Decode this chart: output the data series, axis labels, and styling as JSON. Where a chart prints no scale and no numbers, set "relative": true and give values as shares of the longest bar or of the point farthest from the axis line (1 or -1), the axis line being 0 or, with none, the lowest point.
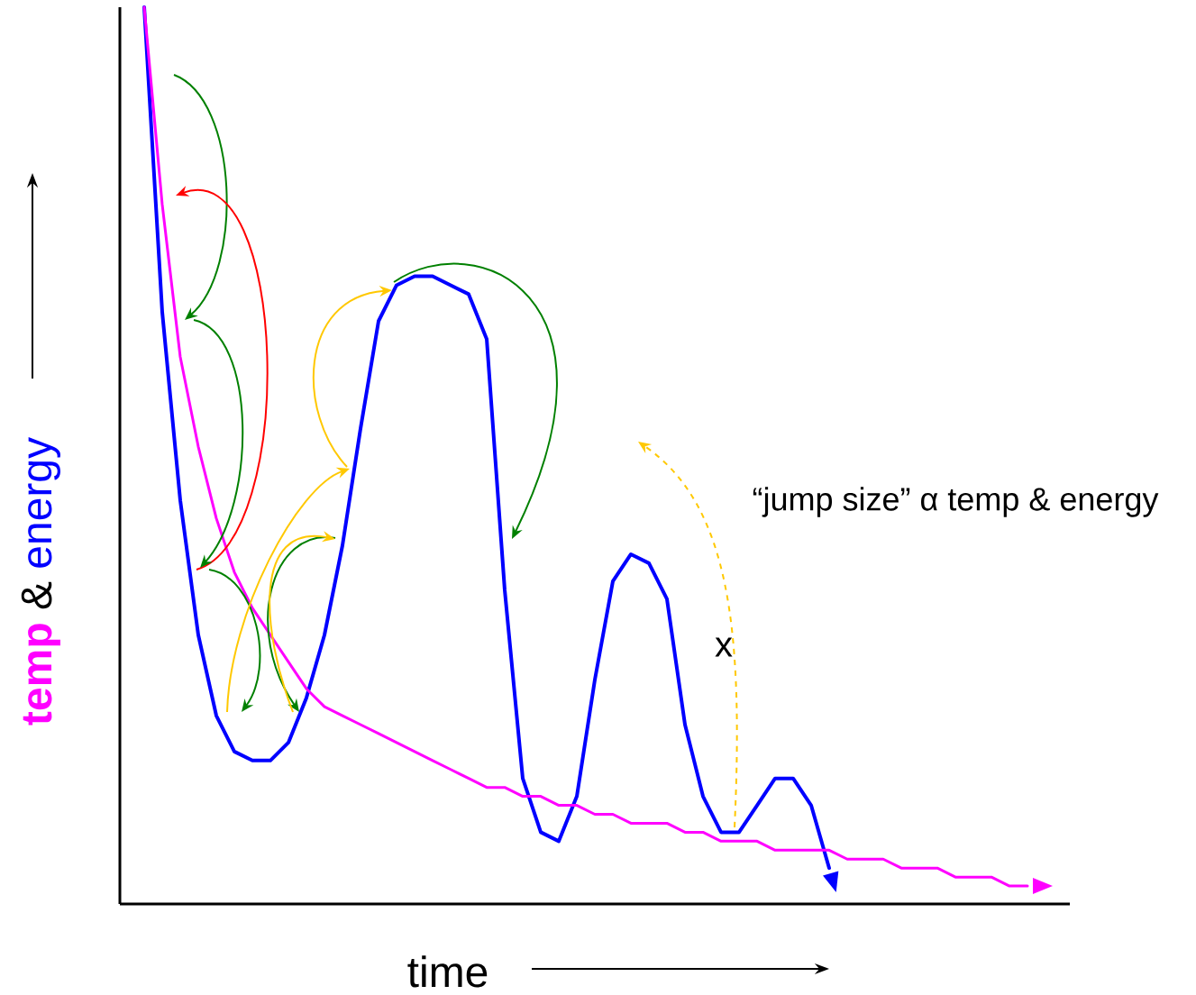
{
  "chart_data": {
    "type": "line",
    "relative": true,
    "xlabel": "time",
    "ylabel": "&",
    "marker": "none",
    "line_style": "solid",
    "categories": [
      null,
      null,
      null,
      null,
      null,
      null,
      null,
      null,
      null,
      null,
      null,
      null,
      null,
      null,
      null,
      null,
      null,
      null,
      null,
      null,
      null,
      null,
      null,
      null,
      null,
      null,
      null,
      null,
      null,
      null,
      null,
      null,
      null,
      null,
      null,
      null,
      null,
      null,
      null,
      null,
      null,
      null,
      null,
      null,
      null,
      null,
      null,
      null,
      null,
      null
    ],
    "series": [
      {
        "name": "temp",
        "color": "#ff00ff",
        "values": [
          1.0,
          0.78,
          0.61,
          0.51,
          0.43,
          0.37,
          0.33,
          0.3,
          0.27,
          0.24,
          0.22,
          0.21,
          0.2,
          0.19,
          0.18,
          0.17,
          0.16,
          0.15,
          0.14,
          0.13,
          0.13,
          0.12,
          0.12,
          0.11,
          0.11,
          0.1,
          0.1,
          0.09,
          0.09,
          0.09,
          0.08,
          0.08,
          0.07,
          0.07,
          0.07,
          0.06,
          0.06,
          0.06,
          0.06,
          0.05,
          0.05,
          0.05,
          0.04,
          0.04,
          0.04,
          0.03,
          0.03,
          0.03,
          0.02,
          0.02
        ]
      },
      {
        "name": "energy",
        "color": "#0000ff",
        "values": [
          1.0,
          0.66,
          0.45,
          0.3,
          0.21,
          0.17,
          0.16,
          0.16,
          0.18,
          0.23,
          0.3,
          0.4,
          0.53,
          0.65,
          0.69,
          0.7,
          0.7,
          0.69,
          0.68,
          0.63,
          0.35,
          0.14,
          0.08,
          0.07,
          0.12,
          0.25,
          0.36,
          0.39,
          0.38,
          0.34,
          0.2,
          0.12,
          0.08,
          0.08,
          0.11,
          0.14,
          0.14,
          0.11,
          0.04,
          null,
          null,
          null,
          null,
          null,
          null,
          null,
          null,
          null,
          null,
          null
        ]
      }
    ],
    "annotations": [
      "“jump size” α temp & energy",
      "x"
    ]
  }
}
